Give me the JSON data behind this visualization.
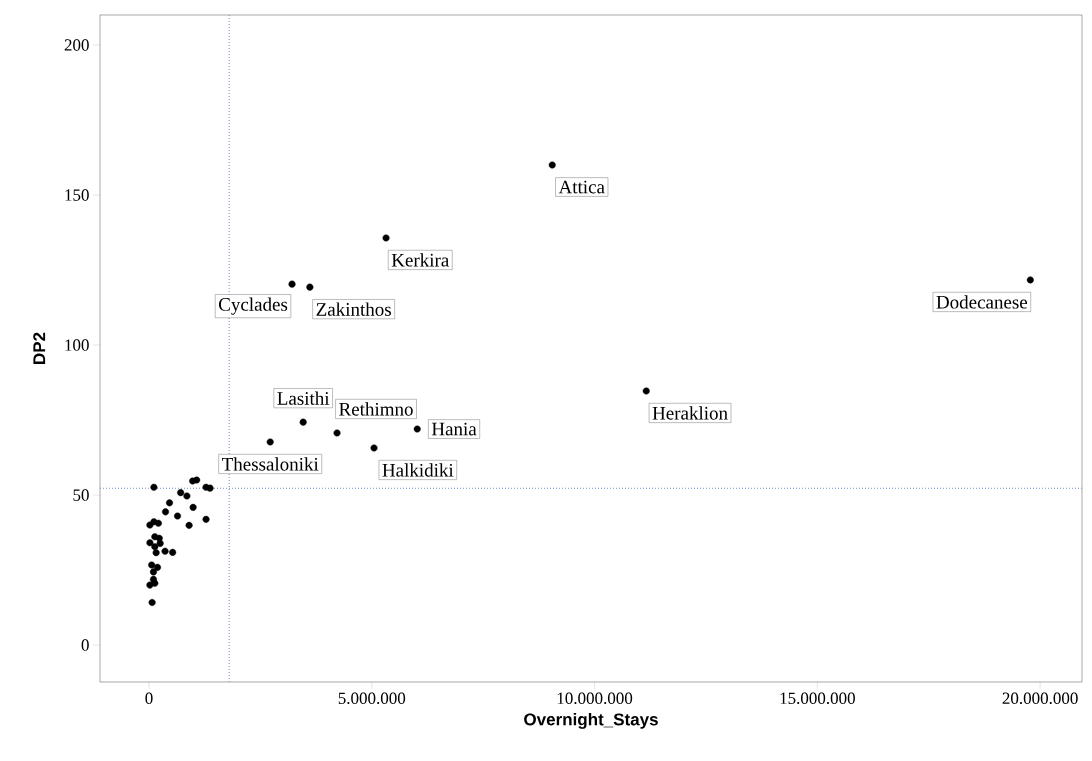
{
  "chart_data": {
    "type": "scatter",
    "xlabel": "Overnight_Stays",
    "ylabel": "DP2",
    "xlim": [
      -1100000,
      20940000
    ],
    "ylim": [
      -12.3,
      210
    ],
    "xticks": [
      {
        "value": 0,
        "label": "0"
      },
      {
        "value": 5000000,
        "label": "5.000.000"
      },
      {
        "value": 10000000,
        "label": "10.000.000"
      },
      {
        "value": 15000000,
        "label": "15.000.000"
      },
      {
        "value": 20000000,
        "label": "20.000.000"
      }
    ],
    "yticks": [
      0,
      50,
      100,
      150,
      200
    ],
    "grid": false,
    "marker": "circle",
    "series": [
      {
        "color": "#000000",
        "x": [
          9050000,
          5320000,
          3210000,
          3610000,
          19780000,
          11160000,
          3460000,
          6020000,
          5050000,
          4220000,
          2720000,
          110000,
          980000,
          1070000,
          1280000,
          1370000,
          710000,
          850000,
          460000,
          990000,
          370000,
          640000,
          1280000,
          900000,
          20000,
          110000,
          210000,
          20000,
          130000,
          230000,
          250000,
          130000,
          160000,
          360000,
          530000,
          60000,
          190000,
          100000,
          20000,
          130000,
          100000,
          70000
        ],
        "values": [
          160,
          135.7,
          120.3,
          119.3,
          121.7,
          84.7,
          74.3,
          72,
          65.7,
          70.7,
          67.7,
          52.6,
          54.7,
          55,
          52.6,
          52.3,
          50.8,
          49.7,
          47.4,
          45.9,
          44.4,
          43,
          41.9,
          39.9,
          40,
          41.1,
          40.6,
          34.1,
          36.1,
          35.6,
          33.9,
          32.8,
          30.8,
          31.3,
          30.9,
          26.7,
          25.9,
          24.4,
          20,
          20.6,
          21.9,
          14.2
        ]
      }
    ],
    "ref_lines": [
      {
        "axis": "x",
        "value": 1800000,
        "color": "#6f8fd0",
        "line_style": "dotted"
      },
      {
        "axis": "y",
        "value": 52.3,
        "color": "#6f8fd0",
        "line_style": "dotted"
      }
    ],
    "annotations": [
      {
        "text": "Thessaloniki",
        "x": 2720000,
        "y": 67.7
      },
      {
        "text": "Attica",
        "x": 9050000,
        "y": 160
      },
      {
        "text": "Kerkira",
        "x": 5320000,
        "y": 135.7
      },
      {
        "text": "Dodecanese",
        "x": 19780000,
        "y": 121.7
      },
      {
        "text": "Heraklion",
        "x": 11160000,
        "y": 84.7
      },
      {
        "text": "Cyclades",
        "x": 3210000,
        "y": 120.3
      },
      {
        "text": "Zakinthos",
        "x": 3610000,
        "y": 119.3
      },
      {
        "text": "Halkidiki",
        "x": 5050000,
        "y": 65.7
      },
      {
        "text": "Hania",
        "x": 6020000,
        "y": 72
      },
      {
        "text": "Lasithi",
        "x": 3460000,
        "y": 74.3
      },
      {
        "text": "Rethimno",
        "x": 4220000,
        "y": 70.7
      }
    ]
  }
}
